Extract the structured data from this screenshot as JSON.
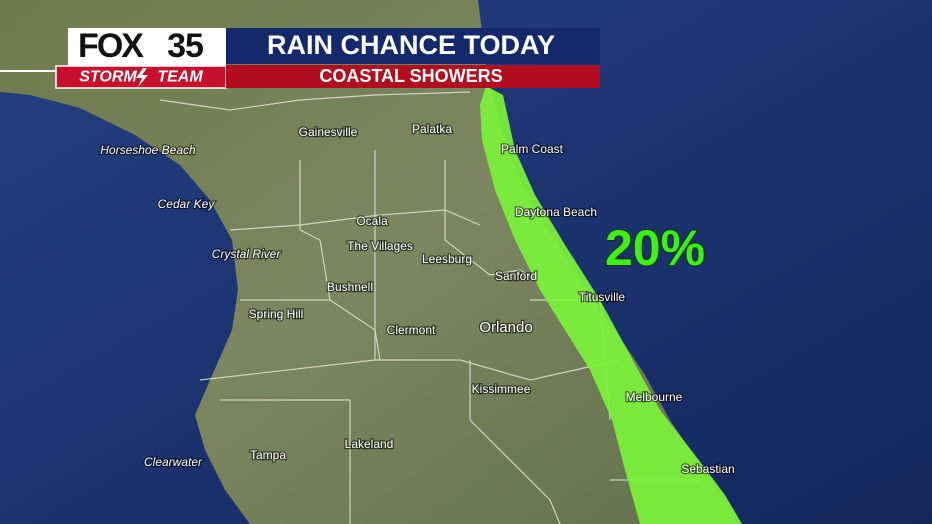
{
  "logo": {
    "brand": "FOX",
    "channel": "35",
    "team_left": "STORM",
    "team_right": "TEAM"
  },
  "header": {
    "title": "RAIN CHANCE TODAY",
    "subtitle": "COASTAL SHOWERS"
  },
  "rain_chance": "20%",
  "cities": [
    "Gainesville",
    "Palatka",
    "Palm Coast",
    "Horseshoe Beach",
    "Cedar Key",
    "Daytona Beach",
    "Ocala",
    "The Villages",
    "Crystal River",
    "Leesburg",
    "Sanford",
    "Bushnell",
    "Titusville",
    "Spring Hill",
    "Clermont",
    "Orlando",
    "Kissimmee",
    "Melbourne",
    "Lakeland",
    "Tampa",
    "Clearwater",
    "Sebastian"
  ]
}
